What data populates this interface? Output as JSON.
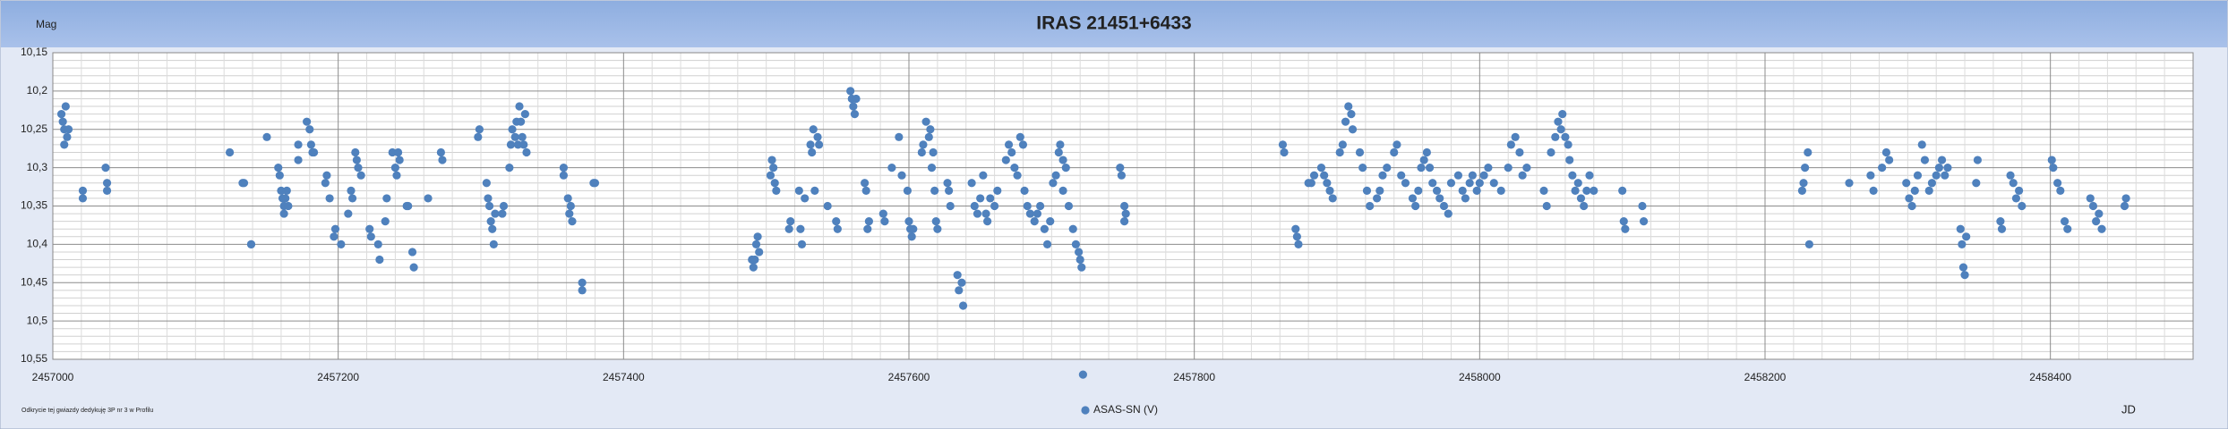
{
  "chart_data": {
    "type": "scatter",
    "title": "IRAS 21451+6433",
    "y_label": "Mag",
    "x_label": "JD",
    "footnote": "Odkrycie tej gwiazdy dedykuję 3P nr 3 w Profilu",
    "xlim": [
      2457000,
      2458500
    ],
    "xticks": [
      2457000,
      2457200,
      2457400,
      2457600,
      2457800,
      2458000,
      2458200,
      2458400
    ],
    "ylim": [
      10.15,
      10.55
    ],
    "y_inverted": true,
    "yticks": [
      {
        "value": 10.15,
        "label": "10,15"
      },
      {
        "value": 10.2,
        "label": "10,2"
      },
      {
        "value": 10.25,
        "label": "10,25"
      },
      {
        "value": 10.3,
        "label": "10,3"
      },
      {
        "value": 10.35,
        "label": "10,35"
      },
      {
        "value": 10.4,
        "label": "10,4"
      },
      {
        "value": 10.45,
        "label": "10,45"
      },
      {
        "value": 10.5,
        "label": "10,5"
      },
      {
        "value": 10.55,
        "label": "10,55"
      }
    ],
    "grid": true,
    "legend": "bottom",
    "x": [
      2457006,
      2457007,
      2457008,
      2457009,
      2457010,
      2457011,
      2457008,
      2457021,
      2457021,
      2457037,
      2457038,
      2457038,
      2457124,
      2457133,
      2457134,
      2457139,
      2457139,
      2457150,
      2457158,
      2457159,
      2457160,
      2457161,
      2457162,
      2457162,
      2457163,
      2457164,
      2457165,
      2457172,
      2457172,
      2457178,
      2457180,
      2457181,
      2457182,
      2457183,
      2457191,
      2457192,
      2457194,
      2457197,
      2457198,
      2457202,
      2457207,
      2457209,
      2457210,
      2457212,
      2457213,
      2457214,
      2457216,
      2457222,
      2457223,
      2457228,
      2457229,
      2457233,
      2457234,
      2457238,
      2457240,
      2457241,
      2457242,
      2457243,
      2457248,
      2457249,
      2457252,
      2457253,
      2457263,
      2457272,
      2457273,
      2457298,
      2457299,
      2457304,
      2457305,
      2457306,
      2457307,
      2457308,
      2457309,
      2457310,
      2457315,
      2457316,
      2457320,
      2457321,
      2457322,
      2457324,
      2457325,
      2457326,
      2457327,
      2457328,
      2457329,
      2457330,
      2457331,
      2457332,
      2457358,
      2457358,
      2457361,
      2457362,
      2457363,
      2457364,
      2457371,
      2457371,
      2457379,
      2457380,
      2457490,
      2457491,
      2457492,
      2457493,
      2457494,
      2457495,
      2457503,
      2457504,
      2457505,
      2457506,
      2457507,
      2457516,
      2457517,
      2457523,
      2457524,
      2457525,
      2457527,
      2457531,
      2457532,
      2457533,
      2457534,
      2457536,
      2457537,
      2457543,
      2457549,
      2457550,
      2457559,
      2457560,
      2457561,
      2457562,
      2457563,
      2457569,
      2457570,
      2457571,
      2457572,
      2457582,
      2457583,
      2457588,
      2457593,
      2457595,
      2457599,
      2457600,
      2457601,
      2457602,
      2457603,
      2457609,
      2457610,
      2457612,
      2457614,
      2457615,
      2457616,
      2457617,
      2457618,
      2457619,
      2457620,
      2457627,
      2457628,
      2457629,
      2457634,
      2457635,
      2457637,
      2457638,
      2457644,
      2457646,
      2457648,
      2457650,
      2457652,
      2457654,
      2457655,
      2457657,
      2457660,
      2457662,
      2457668,
      2457670,
      2457672,
      2457674,
      2457676,
      2457678,
      2457680,
      2457681,
      2457683,
      2457685,
      2457688,
      2457690,
      2457692,
      2457695,
      2457697,
      2457699,
      2457701,
      2457703,
      2457705,
      2457706,
      2457708,
      2457710,
      2457708,
      2457712,
      2457715,
      2457717,
      2457719,
      2457720,
      2457721,
      2457722,
      2457748,
      2457749,
      2457751,
      2457752,
      2457751,
      2457862,
      2457863,
      2457871,
      2457872,
      2457873,
      2457880,
      2457882,
      2457884,
      2457889,
      2457891,
      2457893,
      2457895,
      2457897,
      2457902,
      2457904,
      2457906,
      2457908,
      2457910,
      2457911,
      2457916,
      2457918,
      2457921,
      2457923,
      2457928,
      2457930,
      2457932,
      2457935,
      2457940,
      2457942,
      2457945,
      2457948,
      2457953,
      2457955,
      2457957,
      2457959,
      2457961,
      2457963,
      2457965,
      2457967,
      2457970,
      2457972,
      2457975,
      2457978,
      2457980,
      2457985,
      2457988,
      2457990,
      2457993,
      2457995,
      2457998,
      2458000,
      2458003,
      2458006,
      2458010,
      2458015,
      2458020,
      2458022,
      2458025,
      2458028,
      2458030,
      2458033,
      2458045,
      2458047,
      2458050,
      2458053,
      2458055,
      2458057,
      2458058,
      2458060,
      2458062,
      2458063,
      2458065,
      2458067,
      2458069,
      2458071,
      2458073,
      2458075,
      2458077,
      2458080,
      2458100,
      2458101,
      2458102,
      2458114,
      2458115,
      2458226,
      2458227,
      2458228,
      2458230,
      2458231,
      2458259,
      2458274,
      2458276,
      2458282,
      2458285,
      2458287,
      2458299,
      2458301,
      2458303,
      2458305,
      2458307,
      2458310,
      2458312,
      2458315,
      2458317,
      2458320,
      2458322,
      2458324,
      2458326,
      2458328,
      2458337,
      2458338,
      2458339,
      2458340,
      2458341,
      2458348,
      2458349,
      2458365,
      2458366,
      2458372,
      2458374,
      2458376,
      2458378,
      2458380,
      2458401,
      2458402,
      2458405,
      2458407,
      2458410,
      2458412,
      2458428,
      2458430,
      2458432,
      2458434,
      2458436,
      2458452,
      2458453
    ],
    "series": [
      {
        "name": "ASAS-SN (V)",
        "color": "#4f81bd",
        "values": [
          10.23,
          10.24,
          10.25,
          10.22,
          10.26,
          10.25,
          10.27,
          10.33,
          10.34,
          10.3,
          10.33,
          10.32,
          10.28,
          10.32,
          10.32,
          10.4,
          10.4,
          10.26,
          10.3,
          10.31,
          10.33,
          10.34,
          10.35,
          10.36,
          10.34,
          10.33,
          10.35,
          10.27,
          10.29,
          10.24,
          10.25,
          10.27,
          10.28,
          10.28,
          10.32,
          10.31,
          10.34,
          10.39,
          10.38,
          10.4,
          10.36,
          10.33,
          10.34,
          10.28,
          10.29,
          10.3,
          10.31,
          10.38,
          10.39,
          10.4,
          10.42,
          10.37,
          10.34,
          10.28,
          10.3,
          10.31,
          10.28,
          10.29,
          10.35,
          10.35,
          10.41,
          10.43,
          10.34,
          10.28,
          10.29,
          10.26,
          10.25,
          10.32,
          10.34,
          10.35,
          10.37,
          10.38,
          10.4,
          10.36,
          10.36,
          10.35,
          10.3,
          10.27,
          10.25,
          10.26,
          10.24,
          10.27,
          10.22,
          10.24,
          10.26,
          10.27,
          10.23,
          10.28,
          10.3,
          10.31,
          10.34,
          10.36,
          10.35,
          10.37,
          10.45,
          10.46,
          10.32,
          10.32,
          10.42,
          10.43,
          10.42,
          10.4,
          10.39,
          10.41,
          10.31,
          10.29,
          10.3,
          10.32,
          10.33,
          10.38,
          10.37,
          10.33,
          10.38,
          10.4,
          10.34,
          10.27,
          10.28,
          10.25,
          10.33,
          10.26,
          10.27,
          10.35,
          10.37,
          10.38,
          10.2,
          10.21,
          10.22,
          10.23,
          10.21,
          10.32,
          10.33,
          10.38,
          10.37,
          10.36,
          10.37,
          10.3,
          10.26,
          10.31,
          10.33,
          10.37,
          10.38,
          10.39,
          10.38,
          10.28,
          10.27,
          10.24,
          10.26,
          10.25,
          10.3,
          10.28,
          10.33,
          10.37,
          10.38,
          10.32,
          10.33,
          10.35,
          10.44,
          10.46,
          10.45,
          10.48,
          10.32,
          10.35,
          10.36,
          10.34,
          10.31,
          10.36,
          10.37,
          10.34,
          10.35,
          10.33,
          10.29,
          10.27,
          10.28,
          10.3,
          10.31,
          10.26,
          10.27,
          10.33,
          10.35,
          10.36,
          10.37,
          10.36,
          10.35,
          10.38,
          10.4,
          10.37,
          10.32,
          10.31,
          10.28,
          10.27,
          10.29,
          10.3,
          10.33,
          10.35,
          10.38,
          10.4,
          10.41,
          10.42,
          10.43,
          10.57,
          10.3,
          10.31,
          10.35,
          10.36,
          10.37,
          10.27,
          10.28,
          10.38,
          10.39,
          10.4,
          10.32,
          10.32,
          10.31,
          10.3,
          10.31,
          10.32,
          10.33,
          10.34,
          10.28,
          10.27,
          10.24,
          10.22,
          10.23,
          10.25,
          10.28,
          10.3,
          10.33,
          10.35,
          10.34,
          10.33,
          10.31,
          10.3,
          10.28,
          10.27,
          10.31,
          10.32,
          10.34,
          10.35,
          10.33,
          10.3,
          10.29,
          10.28,
          10.3,
          10.32,
          10.33,
          10.34,
          10.35,
          10.36,
          10.32,
          10.31,
          10.33,
          10.34,
          10.32,
          10.31,
          10.33,
          10.32,
          10.31,
          10.3,
          10.32,
          10.33,
          10.3,
          10.27,
          10.26,
          10.28,
          10.31,
          10.3,
          10.33,
          10.35,
          10.28,
          10.26,
          10.24,
          10.25,
          10.23,
          10.26,
          10.27,
          10.29,
          10.31,
          10.33,
          10.32,
          10.34,
          10.35,
          10.33,
          10.31,
          10.33,
          10.33,
          10.37,
          10.38,
          10.35,
          10.37,
          10.33,
          10.32,
          10.3,
          10.28,
          10.4,
          10.32,
          10.31,
          10.33,
          10.3,
          10.28,
          10.29,
          10.32,
          10.34,
          10.35,
          10.33,
          10.31,
          10.27,
          10.29,
          10.33,
          10.32,
          10.31,
          10.3,
          10.29,
          10.31,
          10.3,
          10.38,
          10.4,
          10.43,
          10.44,
          10.39,
          10.32,
          10.29,
          10.37,
          10.38,
          10.31,
          10.32,
          10.34,
          10.33,
          10.35,
          10.29,
          10.3,
          10.32,
          10.33,
          10.37,
          10.38,
          10.34,
          10.35,
          10.37,
          10.36,
          10.38,
          10.35,
          10.34
        ]
      }
    ]
  }
}
